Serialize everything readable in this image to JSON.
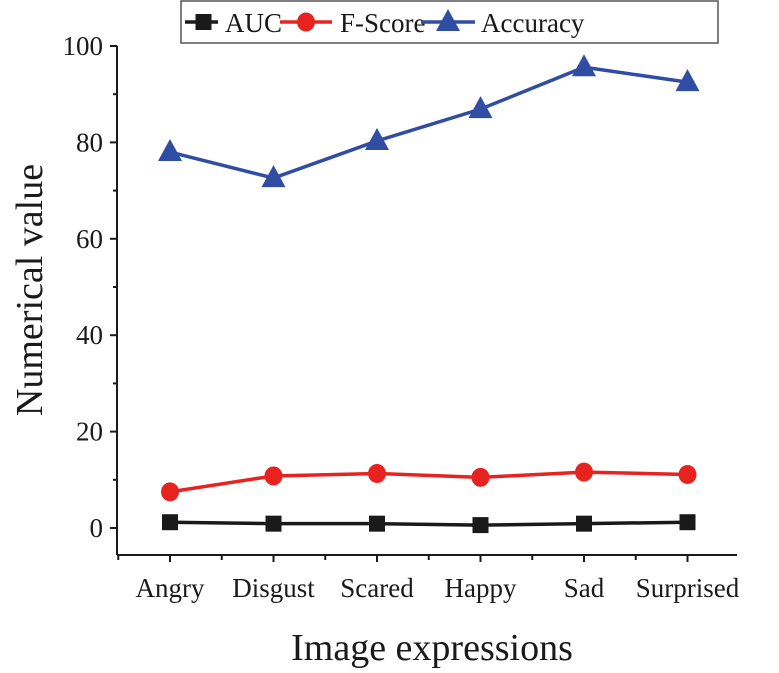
{
  "chart_data": {
    "type": "line",
    "title": "",
    "xlabel": "Image expressions",
    "ylabel": "Numerical value",
    "categories": [
      "Angry",
      "Disgust",
      "Scared",
      "Happy",
      "Sad",
      "Surprised"
    ],
    "ylim": [
      0,
      100
    ],
    "yticks": [
      0,
      20,
      40,
      60,
      80,
      100
    ],
    "grid": false,
    "legend_position": "top",
    "series": [
      {
        "name": "AUC",
        "color": "#1a1a1a",
        "marker": "square",
        "values": [
          1.2,
          0.9,
          0.9,
          0.6,
          0.9,
          1.2
        ]
      },
      {
        "name": "F-Score",
        "color": "#e8231f",
        "marker": "circle",
        "values": [
          7.5,
          10.8,
          11.3,
          10.5,
          11.6,
          11.1
        ]
      },
      {
        "name": "Accuracy",
        "color": "#2f4ea3",
        "marker": "triangle",
        "values": [
          78.0,
          72.6,
          80.3,
          86.9,
          95.6,
          92.5
        ]
      }
    ]
  },
  "legend": {
    "items": [
      "AUC",
      "F-Score",
      "Accuracy"
    ]
  }
}
